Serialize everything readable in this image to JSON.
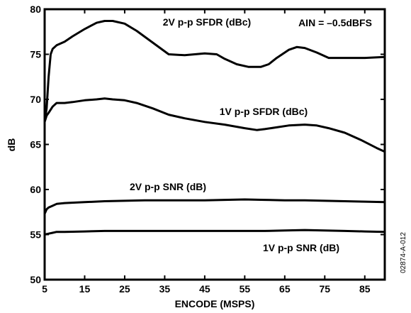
{
  "chart_data": {
    "type": "line",
    "title": "",
    "xlabel": "ENCODE (MSPS)",
    "ylabel": "dB",
    "xlim": [
      5,
      90
    ],
    "ylim": [
      50,
      80
    ],
    "x_ticks": [
      5,
      15,
      25,
      35,
      45,
      55,
      65,
      75,
      85
    ],
    "y_ticks": [
      50,
      55,
      60,
      65,
      70,
      75,
      80
    ],
    "grid": false,
    "annotation": "AIN = –0.5dBFS",
    "figure_id": "02874-A-012",
    "series": [
      {
        "name": "2V p-p SFDR (dBc)",
        "x": [
          5,
          5.5,
          6,
          6.5,
          7,
          8,
          10,
          12,
          15,
          18,
          20,
          22,
          25,
          28,
          32,
          36,
          40,
          45,
          48,
          50,
          53,
          56,
          59,
          61,
          63,
          66,
          68,
          70,
          73,
          76,
          80,
          85,
          90
        ],
        "y": [
          67.5,
          69,
          72.5,
          75,
          75.6,
          76,
          76.4,
          77,
          77.8,
          78.5,
          78.7,
          78.7,
          78.4,
          77.6,
          76.3,
          75,
          74.9,
          75.1,
          75,
          74.5,
          73.9,
          73.6,
          73.6,
          73.9,
          74.6,
          75.5,
          75.8,
          75.7,
          75.2,
          74.6,
          74.6,
          74.6,
          74.7
        ]
      },
      {
        "name": "1V p-p SFDR (dBc)",
        "x": [
          5,
          5.5,
          6,
          7,
          8,
          10,
          12,
          15,
          18,
          20,
          22,
          25,
          28,
          32,
          36,
          40,
          45,
          50,
          55,
          58,
          60,
          63,
          66,
          70,
          73,
          76,
          80,
          84,
          88,
          90
        ],
        "y": [
          67.5,
          68.2,
          68.5,
          69.2,
          69.6,
          69.6,
          69.7,
          69.9,
          70,
          70.1,
          70,
          69.9,
          69.6,
          69,
          68.3,
          67.9,
          67.5,
          67.2,
          66.8,
          66.6,
          66.7,
          66.9,
          67.1,
          67.2,
          67.1,
          66.8,
          66.3,
          65.5,
          64.6,
          64.2
        ]
      },
      {
        "name": "2V p-p SNR (dB)",
        "x": [
          5,
          5.5,
          6,
          7,
          8,
          10,
          15,
          20,
          25,
          30,
          35,
          40,
          45,
          50,
          55,
          60,
          65,
          70,
          75,
          80,
          85,
          90
        ],
        "y": [
          57.3,
          57.8,
          58,
          58.2,
          58.4,
          58.5,
          58.6,
          58.7,
          58.75,
          58.8,
          58.8,
          58.8,
          58.8,
          58.85,
          58.9,
          58.85,
          58.8,
          58.8,
          58.75,
          58.7,
          58.65,
          58.6
        ]
      },
      {
        "name": "1V p-p SNR (dB)",
        "x": [
          5,
          6,
          7,
          8,
          10,
          15,
          20,
          25,
          30,
          35,
          40,
          45,
          50,
          55,
          60,
          65,
          70,
          75,
          80,
          85,
          90
        ],
        "y": [
          55,
          55.1,
          55.2,
          55.3,
          55.3,
          55.35,
          55.4,
          55.4,
          55.4,
          55.4,
          55.4,
          55.4,
          55.4,
          55.4,
          55.4,
          55.45,
          55.5,
          55.45,
          55.4,
          55.35,
          55.3
        ]
      }
    ]
  }
}
